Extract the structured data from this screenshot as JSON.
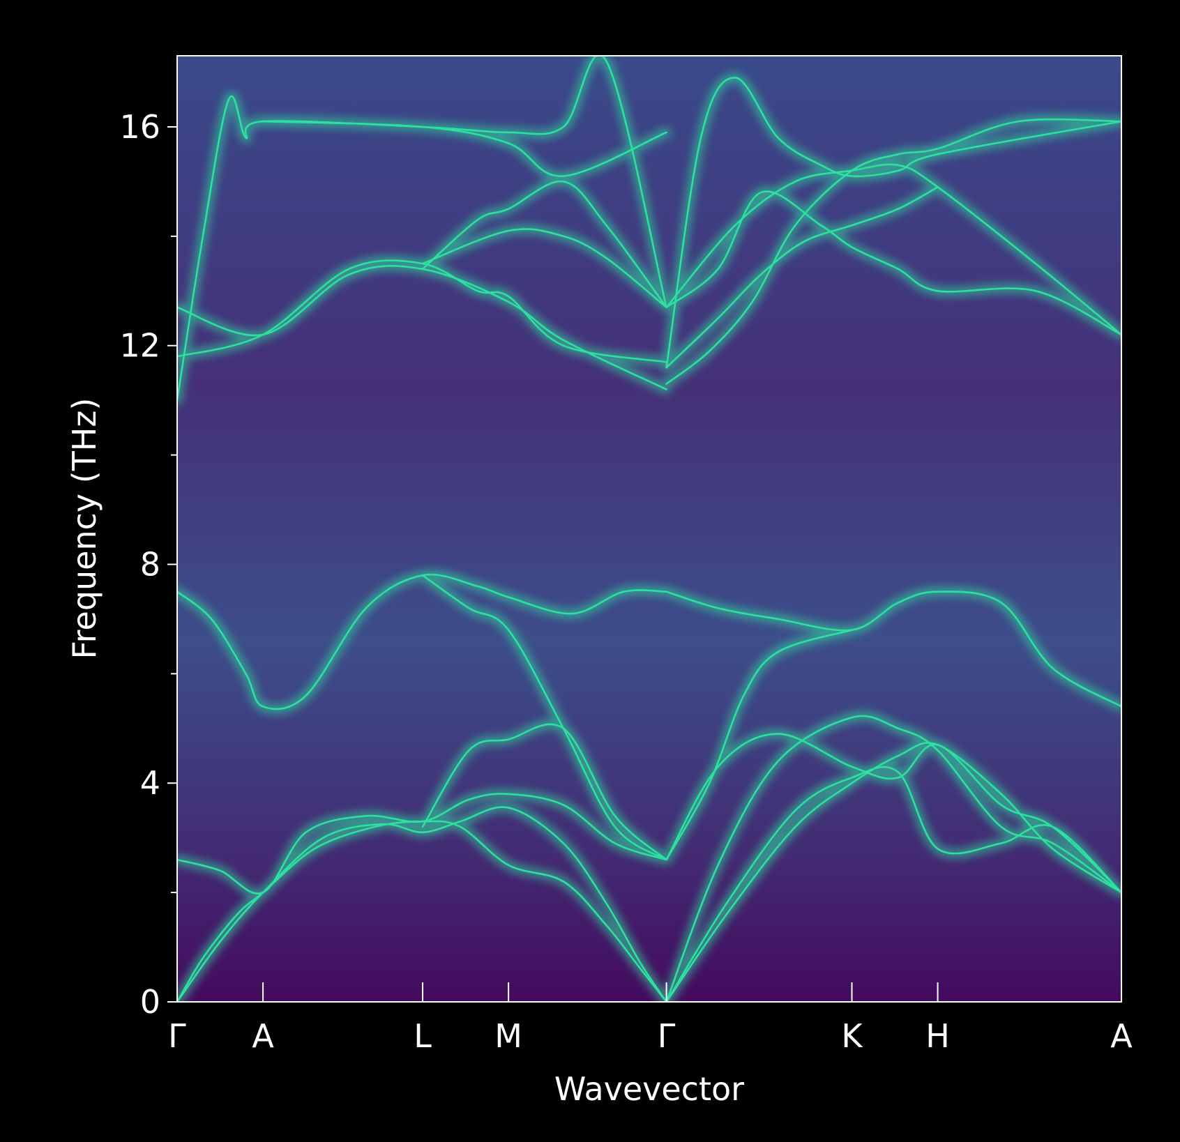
{
  "chart_data": {
    "type": "line",
    "subtype": "phonon-dispersion-spectral-function",
    "xlabel": "Wavevector",
    "ylabel": "Frequency (THz)",
    "ylim": [
      0,
      17.3
    ],
    "yticks_major": [
      0,
      4,
      8,
      12,
      16
    ],
    "yticks_minor": [
      2,
      6,
      10,
      14
    ],
    "x_range": [
      0,
      11.0
    ],
    "high_symmetry_points": [
      {
        "label": "Γ",
        "x": 0.0
      },
      {
        "label": "A",
        "x": 1.0
      },
      {
        "label": "L",
        "x": 2.86
      },
      {
        "label": "M",
        "x": 3.86
      },
      {
        "label": "Γ",
        "x": 5.7
      },
      {
        "label": "K",
        "x": 7.86
      },
      {
        "label": "H",
        "x": 8.86
      },
      {
        "label": "A",
        "x": 11.0
      }
    ],
    "grid": false,
    "legend": "none",
    "colors": {
      "background": "#000000",
      "axes_frame": "#ffffff",
      "low_intensity": "#440a5e",
      "mid_intensity": "#3a5a8c",
      "branch": "#2ee0a0"
    },
    "series": [
      {
        "x": [
          0,
          0.3,
          0.7,
          1.0,
          1.6,
          2.3,
          2.86,
          3.3,
          3.86,
          4.5,
          5.0,
          5.4,
          5.7
        ],
        "y": [
          0,
          0.8,
          1.6,
          2.0,
          2.8,
          3.2,
          3.3,
          3.2,
          2.5,
          2.2,
          1.4,
          0.6,
          0
        ]
      },
      {
        "x": [
          0,
          0.5,
          1.0,
          1.7,
          2.4,
          2.86,
          3.3,
          3.86,
          4.5,
          5.0,
          5.4,
          5.7
        ],
        "y": [
          0,
          1.1,
          2.0,
          3.0,
          3.25,
          3.1,
          3.3,
          3.55,
          2.9,
          1.8,
          0.7,
          0
        ]
      },
      {
        "x": [
          0,
          0.5,
          1.0,
          1.5,
          2.2,
          2.86,
          3.4,
          3.86,
          4.5,
          5.1,
          5.7
        ],
        "y": [
          2.6,
          2.4,
          2.0,
          3.1,
          3.4,
          3.3,
          3.7,
          3.8,
          3.6,
          2.9,
          2.6
        ]
      },
      {
        "x": [
          2.86,
          3.4,
          3.86,
          4.5,
          5.1,
          5.7
        ],
        "y": [
          3.2,
          4.6,
          4.8,
          5.0,
          3.4,
          2.6
        ]
      },
      {
        "x": [
          0,
          0.4,
          0.8,
          1.0,
          1.5,
          2.2,
          2.86,
          3.5,
          3.86,
          4.6,
          5.2,
          5.7
        ],
        "y": [
          7.5,
          7.0,
          6.0,
          5.4,
          5.6,
          7.2,
          7.8,
          7.6,
          7.4,
          7.1,
          7.5,
          7.5
        ]
      },
      {
        "x": [
          2.86,
          3.4,
          3.86,
          4.5,
          5.1,
          5.7
        ],
        "y": [
          7.8,
          7.2,
          6.8,
          5.0,
          3.2,
          2.6
        ]
      },
      {
        "x": [
          0,
          1.0,
          2.0,
          2.86,
          3.86,
          4.5,
          5.7
        ],
        "y": [
          12.7,
          12.2,
          13.3,
          13.4,
          12.8,
          12.1,
          11.2
        ]
      },
      {
        "x": [
          0,
          1.0,
          2.0,
          2.86,
          3.5,
          3.86,
          4.5,
          5.7
        ],
        "y": [
          11.8,
          12.2,
          13.4,
          13.5,
          13.0,
          12.9,
          12.0,
          11.7
        ]
      },
      {
        "x": [
          2.86,
          3.5,
          3.86,
          4.5,
          5.0,
          5.7
        ],
        "y": [
          13.4,
          14.3,
          14.5,
          15.0,
          14.2,
          12.7
        ]
      },
      {
        "x": [
          2.86,
          3.86,
          4.5,
          5.0,
          5.7
        ],
        "y": [
          13.5,
          14.1,
          14.0,
          13.6,
          12.7
        ]
      },
      {
        "x": [
          0,
          0.3,
          0.6,
          0.8,
          1.0,
          2.86,
          3.86,
          4.5,
          5.0,
          5.7
        ],
        "y": [
          11.0,
          14.0,
          16.5,
          15.8,
          16.1,
          16.0,
          15.9,
          16.0,
          17.2,
          12.7
        ]
      },
      {
        "x": [
          1.0,
          2.86,
          3.86,
          4.5,
          5.7
        ],
        "y": [
          16.1,
          16.0,
          15.7,
          15.1,
          15.9
        ]
      },
      {
        "x": [
          5.7,
          6.2,
          6.7,
          7.2,
          7.86,
          8.4,
          8.86,
          9.8,
          11.0
        ],
        "y": [
          11.3,
          11.9,
          12.8,
          14.2,
          15.2,
          15.5,
          15.6,
          16.1,
          16.1
        ]
      },
      {
        "x": [
          5.7,
          6.3,
          6.8,
          7.5,
          7.86,
          8.4,
          8.86,
          10.0,
          11.0
        ],
        "y": [
          12.7,
          13.4,
          14.8,
          14.2,
          13.8,
          13.4,
          13.0,
          13.0,
          12.2
        ]
      },
      {
        "x": [
          5.7,
          6.5,
          7.2,
          7.86,
          8.4,
          8.86,
          10.0,
          11.0
        ],
        "y": [
          12.7,
          14.2,
          15.0,
          15.2,
          15.3,
          14.9,
          13.5,
          12.2
        ]
      },
      {
        "x": [
          5.7,
          6.3,
          6.8,
          7.3,
          7.86,
          8.4,
          8.86
        ],
        "y": [
          11.6,
          12.5,
          13.3,
          13.9,
          14.2,
          14.5,
          14.9
        ]
      },
      {
        "x": [
          5.7,
          6.1,
          6.5,
          7.0,
          7.5,
          7.86,
          8.4,
          8.86,
          11.0
        ],
        "y": [
          11.6,
          15.8,
          16.9,
          15.8,
          15.3,
          15.1,
          15.2,
          15.5,
          16.1
        ]
      },
      {
        "x": [
          5.7,
          6.3,
          7.0,
          7.86,
          8.4,
          8.86,
          9.6,
          10.2,
          11.0
        ],
        "y": [
          7.5,
          7.2,
          7.0,
          6.8,
          7.3,
          7.5,
          7.3,
          6.1,
          5.4
        ]
      },
      {
        "x": [
          5.7,
          6.2,
          6.6,
          7.0,
          7.86
        ],
        "y": [
          2.6,
          4.0,
          5.6,
          6.4,
          6.8
        ]
      },
      {
        "x": [
          5.7,
          6.3,
          7.0,
          7.86,
          8.4,
          8.86,
          9.6,
          10.2,
          11.0
        ],
        "y": [
          2.6,
          4.3,
          4.9,
          4.3,
          4.1,
          4.7,
          3.6,
          3.2,
          2.0
        ]
      },
      {
        "x": [
          5.7,
          6.3,
          7.0,
          7.86,
          8.4,
          8.86,
          9.6,
          10.2,
          11.0
        ],
        "y": [
          0,
          2.5,
          4.4,
          5.2,
          5.0,
          4.6,
          3.2,
          2.9,
          2.0
        ]
      },
      {
        "x": [
          5.7,
          6.4,
          7.2,
          7.86,
          8.4,
          8.86,
          9.6,
          10.2,
          11.0
        ],
        "y": [
          0,
          1.8,
          3.5,
          4.1,
          4.2,
          2.8,
          2.9,
          3.2,
          2.0
        ]
      },
      {
        "x": [
          5.7,
          6.4,
          7.2,
          7.86,
          8.4,
          8.86,
          9.6,
          10.2,
          11.0
        ],
        "y": [
          0,
          1.6,
          3.2,
          4.0,
          4.5,
          4.7,
          3.8,
          2.8,
          2.0
        ]
      }
    ]
  }
}
